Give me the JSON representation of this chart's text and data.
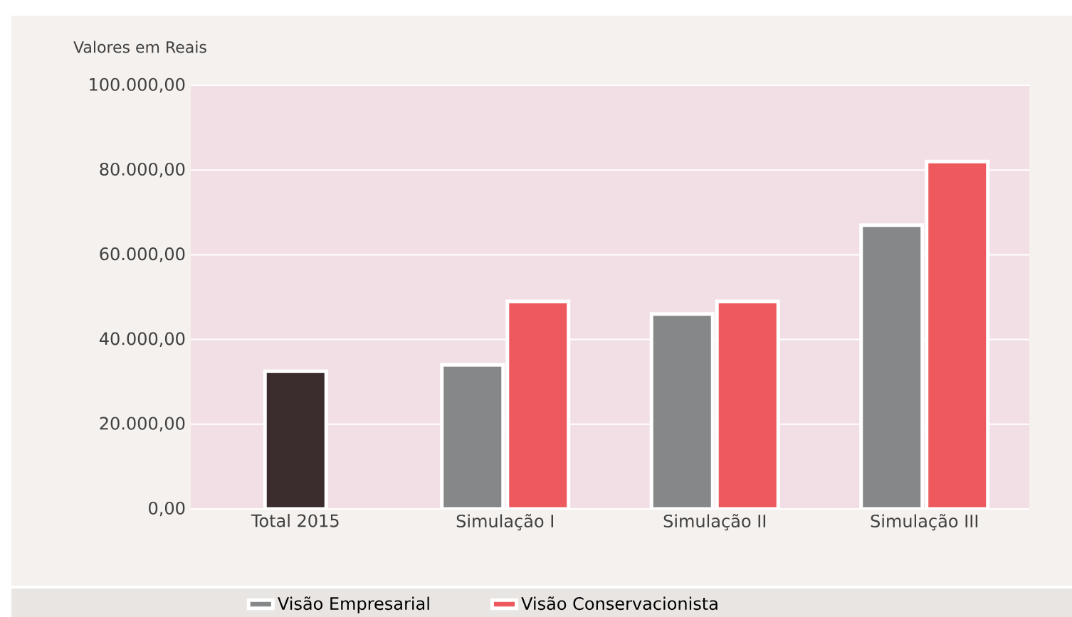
{
  "chart_data": {
    "type": "bar",
    "ylabel": "Valores em Reais",
    "categories": [
      "Total 2015",
      "Simulação I",
      "Simulação II",
      "Simulação III"
    ],
    "series": [
      {
        "color": "#3b2d2e",
        "values": [
          32500,
          null,
          null,
          null
        ]
      },
      {
        "name": "Visão Empresarial",
        "color": "#868789",
        "values": [
          null,
          34000,
          46000,
          67000
        ]
      },
      {
        "name": "Visão Conservacionista",
        "color": "#ee595d",
        "values": [
          null,
          49000,
          49000,
          82000
        ]
      }
    ],
    "ylim": [
      0,
      100000
    ],
    "yticks": [
      {
        "value": 0,
        "label": "0,00"
      },
      {
        "value": 20000,
        "label": "20.000,00"
      },
      {
        "value": 40000,
        "label": "40.000,00"
      },
      {
        "value": 60000,
        "label": "60.000,00"
      },
      {
        "value": 80000,
        "label": "80.000,00"
      },
      {
        "value": 100000,
        "label": "100.000,00"
      }
    ],
    "grid": "y",
    "legend": "bottom"
  }
}
